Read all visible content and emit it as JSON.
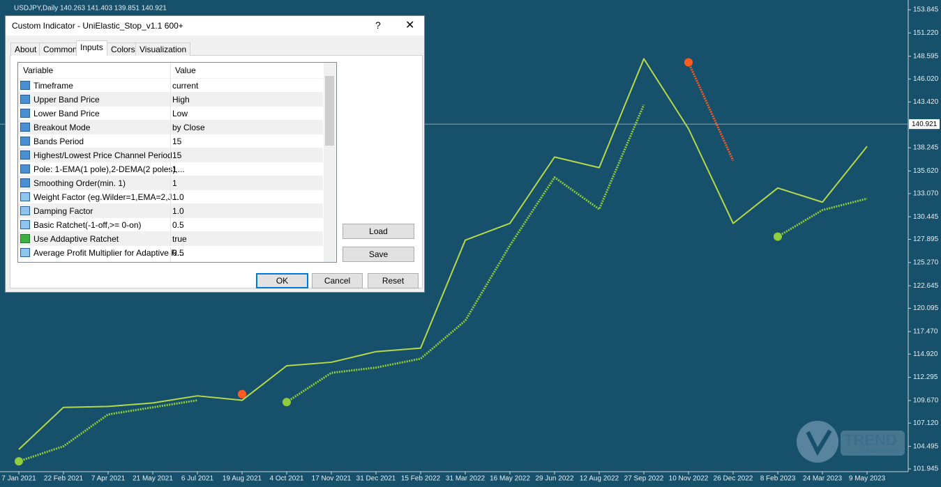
{
  "chart_header": "USDJPY,Daily  140.263 141.403 139.851 140.921",
  "chart_data": {
    "type": "line",
    "categories": [
      "7 Jan 2021",
      "22 Feb 2021",
      "7 Apr 2021",
      "21 May 2021",
      "6 Jul 2021",
      "19 Aug 2021",
      "4 Oct 2021",
      "17 Nov 2021",
      "31 Dec 2021",
      "15 Feb 2022",
      "31 Mar 2022",
      "16 May 2022",
      "29 Jun 2022",
      "12 Aug 2022",
      "27 Sep 2022",
      "10 Nov 2022",
      "26 Dec 2022",
      "8 Feb 2023",
      "24 Mar 2023",
      "9 May 2023"
    ],
    "series": [
      {
        "color": "#b5d94a",
        "values": [
          104.15,
          108.9,
          109.0,
          109.4,
          110.2,
          109.7,
          113.6,
          114.0,
          115.2,
          115.6,
          127.8,
          129.7,
          137.2,
          136.0,
          148.3,
          140.4,
          129.7,
          133.7,
          132.1,
          138.4
        ]
      },
      {
        "color": "#8fce3a",
        "values": [
          102.8,
          104.5,
          108.1,
          108.9,
          109.7,
          null,
          109.5,
          112.8,
          113.4,
          114.4,
          118.7,
          127.2,
          134.9,
          131.3,
          143.1,
          null,
          null,
          128.2,
          131.2,
          132.5
        ]
      },
      {
        "color": "#ff5a1f",
        "values": [
          null,
          null,
          null,
          null,
          null,
          110.4,
          null,
          null,
          null,
          null,
          null,
          null,
          null,
          null,
          null,
          147.9,
          136.8,
          null,
          null,
          null
        ]
      }
    ],
    "ylim": [
      101.63,
      154.95
    ],
    "yticks": [
      153.845,
      {
        "value": 151.22,
        "label": "151.220"
      },
      148.595,
      {
        "value": 146.02,
        "label": "146.020"
      },
      {
        "value": 143.42,
        "label": "143.420"
      },
      138.245,
      {
        "value": 135.62,
        "label": "135.620"
      },
      {
        "value": 133.07,
        "label": "133.070"
      },
      130.445,
      127.895,
      {
        "value": 125.27,
        "label": "125.270"
      },
      122.645,
      120.095,
      {
        "value": 117.47,
        "label": "117.470"
      },
      {
        "value": 114.92,
        "label": "114.920"
      },
      112.295,
      {
        "value": 109.67,
        "label": "109.670"
      },
      {
        "value": 107.12,
        "label": "107.120"
      },
      104.495,
      101.945
    ],
    "current_price": 140.921
  },
  "dialog": {
    "title": "Custom Indicator - UniElastic_Stop_v1.1 600+",
    "tabs": [
      "About",
      "Common",
      "Inputs",
      "Colors",
      "Visualization"
    ],
    "table": {
      "headers": [
        "Variable",
        "Value"
      ],
      "rows": [
        [
          "Timeframe",
          "current"
        ],
        [
          "Upper Band Price",
          "High"
        ],
        [
          "Lower Band Price",
          "Low"
        ],
        [
          "Breakout Mode",
          "by Close"
        ],
        [
          "Bands Period",
          "15"
        ],
        [
          "Highest/Lowest Price Channel Period",
          "15"
        ],
        [
          "Pole: 1-EMA(1 pole),2-DEMA(2 poles),...",
          "1"
        ],
        [
          "Smoothing Order(min. 1)",
          "1"
        ],
        [
          "Weight Factor (eg.Wilder=1,EMA=2,J...",
          "1.0"
        ],
        [
          "Damping Factor",
          "1.0"
        ],
        [
          "Basic Ratchet(-1-off,>= 0-on)",
          "0.5"
        ],
        [
          "Use Addaptive Ratchet",
          "true"
        ],
        [
          "Average Profit Multiplier for Adaptive R...",
          "0.5"
        ]
      ]
    },
    "side_buttons": [
      "Load",
      "Save"
    ],
    "bottom_buttons": [
      "OK",
      "Cancel",
      "Reset"
    ]
  },
  "logo": {
    "title": "TREND",
    "subtitle": "LABORATORY"
  }
}
